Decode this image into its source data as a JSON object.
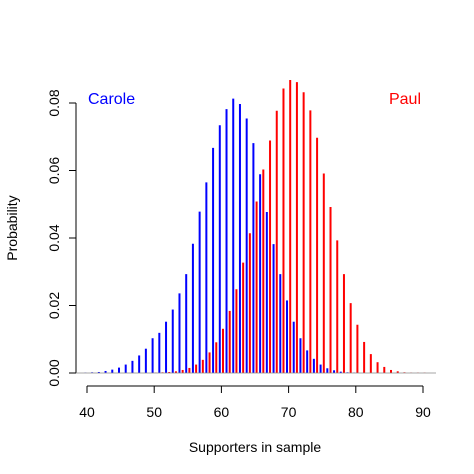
{
  "chart_data": {
    "type": "bar",
    "xlabel": "Supporters in sample",
    "ylabel": "Probability",
    "xlim": [
      40,
      90
    ],
    "ylim": [
      0,
      0.08
    ],
    "xticks": [
      "40",
      "50",
      "60",
      "70",
      "80",
      "90"
    ],
    "yticks": [
      "0.00",
      "0.02",
      "0.04",
      "0.06",
      "0.08"
    ],
    "grid": false,
    "series": [
      {
        "name": "Carole",
        "color": "#0000ff",
        "x": [
          40,
          41,
          42,
          43,
          44,
          45,
          46,
          47,
          48,
          49,
          50,
          51,
          52,
          53,
          54,
          55,
          56,
          57,
          58,
          59,
          60,
          61,
          62,
          63,
          64,
          65,
          66,
          67,
          68,
          69,
          70,
          71,
          72,
          73,
          74,
          75,
          76,
          77,
          78,
          79,
          80
        ],
        "values": [
          0.0001,
          0.0002,
          0.0003,
          0.0006,
          0.001,
          0.0016,
          0.0025,
          0.0036,
          0.0052,
          0.0072,
          0.0103,
          0.0119,
          0.0152,
          0.0188,
          0.0236,
          0.0293,
          0.0383,
          0.0478,
          0.0565,
          0.0667,
          0.0734,
          0.0782,
          0.0813,
          0.0797,
          0.0754,
          0.0681,
          0.0589,
          0.0477,
          0.0382,
          0.0293,
          0.0215,
          0.0152,
          0.0103,
          0.0067,
          0.0042,
          0.0025,
          0.0014,
          0.0008,
          0.0004,
          0.0002,
          0.0001
        ]
      },
      {
        "name": "Paul",
        "color": "#ff0000",
        "x": [
          50,
          51,
          52,
          53,
          54,
          55,
          56,
          57,
          58,
          59,
          60,
          61,
          62,
          63,
          64,
          65,
          66,
          67,
          68,
          69,
          70,
          71,
          72,
          73,
          74,
          75,
          76,
          77,
          78,
          79,
          80,
          81,
          82,
          83,
          84,
          85,
          86,
          87,
          88,
          89,
          90
        ],
        "values": [
          0.0001,
          0.0002,
          0.0003,
          0.0005,
          0.0009,
          0.0015,
          0.0025,
          0.0039,
          0.0061,
          0.0091,
          0.0131,
          0.0184,
          0.0248,
          0.0327,
          0.0414,
          0.0508,
          0.0603,
          0.0689,
          0.0777,
          0.0843,
          0.0868,
          0.0862,
          0.0832,
          0.0778,
          0.0697,
          0.0591,
          0.0492,
          0.0393,
          0.0293,
          0.0207,
          0.0143,
          0.0092,
          0.0056,
          0.0032,
          0.0018,
          0.0009,
          0.0005,
          0.0002,
          0.0001,
          0.0001,
          0.0001
        ]
      }
    ],
    "annotations": [
      {
        "text": "Carole",
        "color": "#0000ff",
        "position": "top-left"
      },
      {
        "text": "Paul",
        "color": "#ff0000",
        "position": "top-right"
      }
    ]
  }
}
